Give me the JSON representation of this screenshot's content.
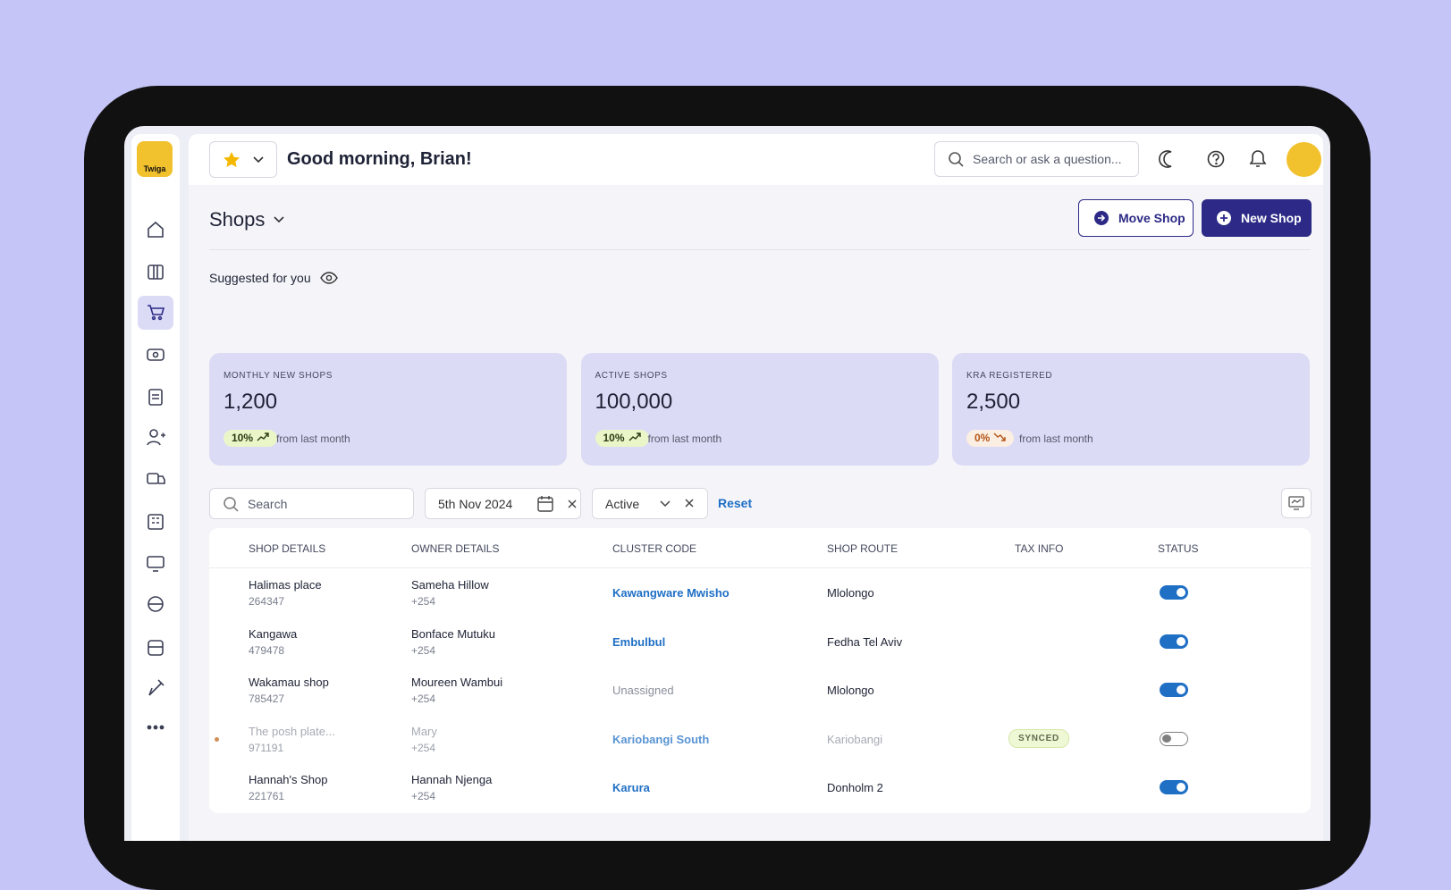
{
  "logo": "Twiga",
  "header": {
    "greeting": "Good morning, Brian!",
    "search_placeholder": "Search or ask a question..."
  },
  "page": {
    "title": "Shops",
    "move_button": "Move Shop",
    "new_button": "New Shop"
  },
  "suggested": {
    "label": "Suggested for you",
    "cards": [
      {
        "label": "MONTHLY NEW SHOPS",
        "value": "1,200",
        "change": "10%",
        "trend": "up",
        "note": "from last month"
      },
      {
        "label": "ACTIVE SHOPS",
        "value": "100,000",
        "change": "10%",
        "trend": "up",
        "note": "from last month"
      },
      {
        "label": "KRA REGISTERED",
        "value": "2,500",
        "change": "0%",
        "trend": "down",
        "note": "from last month"
      }
    ]
  },
  "filters": {
    "search": "Search",
    "date": "5th Nov 2024",
    "status": "Active",
    "reset": "Reset"
  },
  "table": {
    "columns": [
      "SHOP DETAILS",
      "OWNER DETAILS",
      "CLUSTER CODE",
      "SHOP ROUTE",
      "TAX INFO",
      "STATUS"
    ],
    "rows": [
      {
        "name": "Halimas place",
        "id": "264347",
        "owner": "Sameha Hillow",
        "phone": "+254",
        "cluster": "Kawangware Mwisho",
        "assigned": true,
        "route": "Mlolongo",
        "active": true
      },
      {
        "name": "Kangawa",
        "id": "479478",
        "owner": "Bonface Mutuku",
        "phone": "+254",
        "cluster": "Embulbul",
        "assigned": true,
        "route": "Fedha Tel Aviv",
        "active": true
      },
      {
        "name": "Wakamau shop",
        "id": "785427",
        "owner": "Moureen Wambui",
        "phone": "+254",
        "cluster": "Unassigned",
        "assigned": false,
        "route": "Mlolongo",
        "active": true
      },
      {
        "name": "The posh plate...",
        "id": "971191",
        "owner": "Mary",
        "phone": "+254",
        "cluster": "Kariobangi South",
        "assigned": true,
        "route": "Kariobangi",
        "tax": "SYNCED",
        "active": false
      },
      {
        "name": "Hannah's Shop",
        "id": "221761",
        "owner": "Hannah Njenga",
        "phone": "+254",
        "cluster": "Karura",
        "assigned": true,
        "route": "Donholm 2",
        "active": true
      }
    ]
  }
}
